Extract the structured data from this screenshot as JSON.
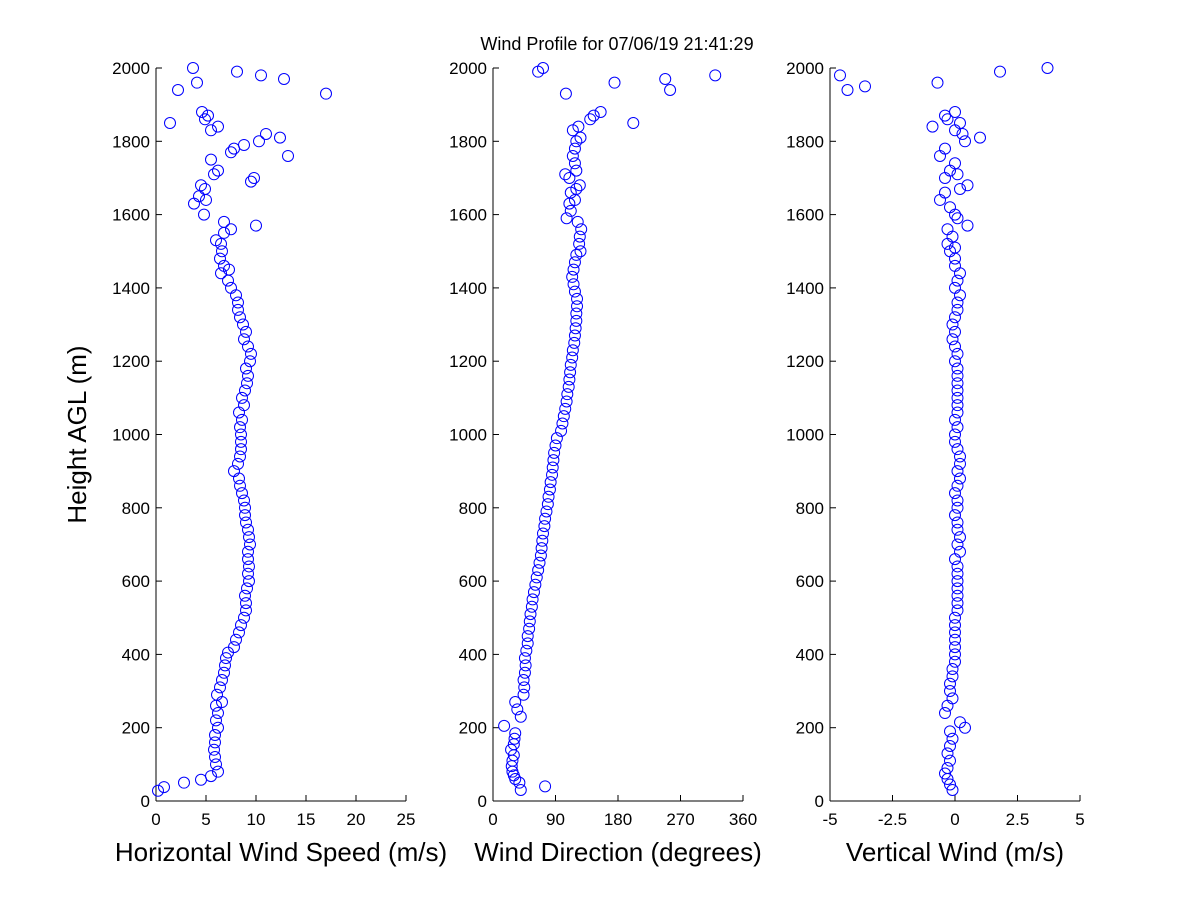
{
  "title": "Wind Profile for  07/06/19 21:41:29",
  "colors": {
    "marker": "#0000ff",
    "axes": "#000000",
    "background": "#ffffff"
  },
  "chart_data": [
    {
      "type": "scatter",
      "xlabel": "Horizontal Wind Speed (m/s)",
      "ylabel": "Height AGL (m)",
      "xlim": [
        0,
        25
      ],
      "ylim": [
        0,
        2000
      ],
      "xticks": [
        "0",
        "5",
        "10",
        "15",
        "20",
        "25"
      ],
      "yticks": [
        "0",
        "200",
        "400",
        "600",
        "800",
        "1000",
        "1200",
        "1400",
        "1600",
        "1800",
        "2000"
      ],
      "marker": "open-circle",
      "grid": false,
      "points": [
        [
          0.2,
          28
        ],
        [
          0.8,
          38
        ],
        [
          2.8,
          50
        ],
        [
          4.5,
          58
        ],
        [
          5.5,
          68
        ],
        [
          6.2,
          80
        ],
        [
          6.0,
          100
        ],
        [
          5.9,
          120
        ],
        [
          5.8,
          140
        ],
        [
          5.9,
          160
        ],
        [
          5.9,
          180
        ],
        [
          6.2,
          200
        ],
        [
          6.0,
          220
        ],
        [
          6.2,
          240
        ],
        [
          6.0,
          260
        ],
        [
          6.6,
          270
        ],
        [
          6.1,
          290
        ],
        [
          6.4,
          310
        ],
        [
          6.6,
          330
        ],
        [
          6.8,
          350
        ],
        [
          6.9,
          370
        ],
        [
          7.0,
          390
        ],
        [
          7.2,
          405
        ],
        [
          7.8,
          420
        ],
        [
          8.0,
          440
        ],
        [
          8.3,
          460
        ],
        [
          8.5,
          480
        ],
        [
          8.8,
          500
        ],
        [
          9.0,
          520
        ],
        [
          9.0,
          540
        ],
        [
          8.9,
          560
        ],
        [
          9.1,
          580
        ],
        [
          9.3,
          600
        ],
        [
          9.2,
          620
        ],
        [
          9.3,
          640
        ],
        [
          9.2,
          660
        ],
        [
          9.2,
          680
        ],
        [
          9.4,
          700
        ],
        [
          9.3,
          720
        ],
        [
          9.2,
          740
        ],
        [
          9.0,
          760
        ],
        [
          8.9,
          780
        ],
        [
          8.9,
          800
        ],
        [
          8.8,
          820
        ],
        [
          8.6,
          840
        ],
        [
          8.4,
          860
        ],
        [
          8.3,
          880
        ],
        [
          7.8,
          900
        ],
        [
          8.2,
          920
        ],
        [
          8.4,
          940
        ],
        [
          8.5,
          960
        ],
        [
          8.5,
          980
        ],
        [
          8.5,
          1000
        ],
        [
          8.4,
          1020
        ],
        [
          8.6,
          1040
        ],
        [
          8.3,
          1060
        ],
        [
          8.8,
          1080
        ],
        [
          8.6,
          1100
        ],
        [
          8.9,
          1120
        ],
        [
          9.1,
          1140
        ],
        [
          9.2,
          1160
        ],
        [
          9.0,
          1180
        ],
        [
          9.4,
          1200
        ],
        [
          9.5,
          1220
        ],
        [
          9.2,
          1240
        ],
        [
          8.8,
          1260
        ],
        [
          9.0,
          1280
        ],
        [
          8.7,
          1300
        ],
        [
          8.4,
          1320
        ],
        [
          8.2,
          1340
        ],
        [
          8.2,
          1360
        ],
        [
          8.0,
          1380
        ],
        [
          7.5,
          1400
        ],
        [
          7.2,
          1420
        ],
        [
          6.5,
          1440
        ],
        [
          7.3,
          1450
        ],
        [
          6.8,
          1460
        ],
        [
          6.4,
          1480
        ],
        [
          6.6,
          1500
        ],
        [
          6.5,
          1520
        ],
        [
          6.0,
          1530
        ],
        [
          6.8,
          1550
        ],
        [
          7.5,
          1560
        ],
        [
          6.8,
          1580
        ],
        [
          10.0,
          1570
        ],
        [
          4.8,
          1600
        ],
        [
          3.8,
          1630
        ],
        [
          5.0,
          1640
        ],
        [
          4.3,
          1650
        ],
        [
          4.9,
          1670
        ],
        [
          4.5,
          1680
        ],
        [
          9.5,
          1690
        ],
        [
          9.8,
          1700
        ],
        [
          5.8,
          1710
        ],
        [
          6.2,
          1720
        ],
        [
          5.5,
          1750
        ],
        [
          13.2,
          1760
        ],
        [
          7.5,
          1770
        ],
        [
          7.8,
          1780
        ],
        [
          8.8,
          1790
        ],
        [
          10.3,
          1800
        ],
        [
          12.4,
          1810
        ],
        [
          11.0,
          1820
        ],
        [
          5.5,
          1830
        ],
        [
          6.2,
          1840
        ],
        [
          1.4,
          1850
        ],
        [
          4.9,
          1860
        ],
        [
          5.2,
          1870
        ],
        [
          4.6,
          1880
        ],
        [
          2.2,
          1940
        ],
        [
          17.0,
          1930
        ],
        [
          4.1,
          1960
        ],
        [
          12.8,
          1970
        ],
        [
          10.5,
          1980
        ],
        [
          8.1,
          1990
        ],
        [
          3.7,
          2000
        ]
      ]
    },
    {
      "type": "scatter",
      "xlabel": "Wind Direction (degrees)",
      "ylabel": "",
      "xlim": [
        0,
        360
      ],
      "ylim": [
        0,
        2000
      ],
      "xticks": [
        "0",
        "90",
        "180",
        "270",
        "360"
      ],
      "yticks": [
        "0",
        "200",
        "400",
        "600",
        "800",
        "1000",
        "1200",
        "1400",
        "1600",
        "1800",
        "2000"
      ],
      "marker": "open-circle",
      "grid": false,
      "points": [
        [
          40,
          30
        ],
        [
          75,
          40
        ],
        [
          38,
          50
        ],
        [
          32,
          60
        ],
        [
          30,
          70
        ],
        [
          28,
          80
        ],
        [
          27,
          95
        ],
        [
          28,
          110
        ],
        [
          30,
          125
        ],
        [
          26,
          140
        ],
        [
          30,
          155
        ],
        [
          31,
          170
        ],
        [
          32,
          185
        ],
        [
          16,
          205
        ],
        [
          40,
          230
        ],
        [
          35,
          250
        ],
        [
          32,
          270
        ],
        [
          44,
          290
        ],
        [
          45,
          310
        ],
        [
          44,
          330
        ],
        [
          46,
          350
        ],
        [
          47,
          370
        ],
        [
          46,
          390
        ],
        [
          48,
          410
        ],
        [
          50,
          430
        ],
        [
          50,
          450
        ],
        [
          52,
          470
        ],
        [
          53,
          490
        ],
        [
          54,
          510
        ],
        [
          56,
          530
        ],
        [
          57,
          550
        ],
        [
          59,
          570
        ],
        [
          61,
          590
        ],
        [
          63,
          610
        ],
        [
          65,
          630
        ],
        [
          67,
          650
        ],
        [
          69,
          670
        ],
        [
          70,
          690
        ],
        [
          71,
          710
        ],
        [
          72,
          730
        ],
        [
          74,
          750
        ],
        [
          75,
          770
        ],
        [
          77,
          790
        ],
        [
          79,
          810
        ],
        [
          80,
          830
        ],
        [
          82,
          850
        ],
        [
          83,
          870
        ],
        [
          85,
          890
        ],
        [
          86,
          910
        ],
        [
          87,
          930
        ],
        [
          88,
          950
        ],
        [
          90,
          970
        ],
        [
          92,
          990
        ],
        [
          98,
          1010
        ],
        [
          100,
          1030
        ],
        [
          102,
          1050
        ],
        [
          104,
          1070
        ],
        [
          106,
          1090
        ],
        [
          107,
          1110
        ],
        [
          109,
          1130
        ],
        [
          110,
          1150
        ],
        [
          111,
          1170
        ],
        [
          112,
          1190
        ],
        [
          114,
          1210
        ],
        [
          115,
          1230
        ],
        [
          117,
          1250
        ],
        [
          118,
          1270
        ],
        [
          119,
          1290
        ],
        [
          120,
          1310
        ],
        [
          120,
          1330
        ],
        [
          121,
          1350
        ],
        [
          121,
          1370
        ],
        [
          118,
          1390
        ],
        [
          116,
          1410
        ],
        [
          114,
          1430
        ],
        [
          116,
          1450
        ],
        [
          118,
          1470
        ],
        [
          120,
          1490
        ],
        [
          126,
          1500
        ],
        [
          124,
          1520
        ],
        [
          125,
          1540
        ],
        [
          127,
          1560
        ],
        [
          122,
          1580
        ],
        [
          106,
          1590
        ],
        [
          112,
          1610
        ],
        [
          110,
          1630
        ],
        [
          118,
          1640
        ],
        [
          112,
          1660
        ],
        [
          120,
          1670
        ],
        [
          125,
          1680
        ],
        [
          110,
          1700
        ],
        [
          104,
          1710
        ],
        [
          120,
          1720
        ],
        [
          118,
          1740
        ],
        [
          115,
          1760
        ],
        [
          118,
          1780
        ],
        [
          120,
          1800
        ],
        [
          126,
          1810
        ],
        [
          115,
          1830
        ],
        [
          123,
          1840
        ],
        [
          202,
          1850
        ],
        [
          140,
          1860
        ],
        [
          155,
          1880
        ],
        [
          145,
          1870
        ],
        [
          105,
          1930
        ],
        [
          255,
          1940
        ],
        [
          175,
          1960
        ],
        [
          248,
          1970
        ],
        [
          320,
          1980
        ],
        [
          65,
          1990
        ],
        [
          72,
          2000
        ]
      ]
    },
    {
      "type": "scatter",
      "xlabel": "Vertical Wind (m/s)",
      "ylabel": "",
      "xlim": [
        -5,
        5
      ],
      "ylim": [
        0,
        2000
      ],
      "xticks": [
        "-5",
        "-2.5",
        "0",
        "2.5",
        "5"
      ],
      "yticks": [
        "0",
        "200",
        "400",
        "600",
        "800",
        "1000",
        "1200",
        "1400",
        "1600",
        "1800",
        "2000"
      ],
      "marker": "open-circle",
      "grid": false,
      "points": [
        [
          -0.1,
          30
        ],
        [
          -0.2,
          45
        ],
        [
          -0.3,
          60
        ],
        [
          -0.4,
          75
        ],
        [
          -0.3,
          90
        ],
        [
          -0.2,
          110
        ],
        [
          -0.3,
          130
        ],
        [
          -0.2,
          150
        ],
        [
          -0.1,
          170
        ],
        [
          -0.2,
          190
        ],
        [
          0.4,
          200
        ],
        [
          0.2,
          215
        ],
        [
          -0.4,
          240
        ],
        [
          -0.3,
          260
        ],
        [
          -0.1,
          280
        ],
        [
          -0.2,
          300
        ],
        [
          -0.2,
          320
        ],
        [
          -0.1,
          340
        ],
        [
          -0.1,
          360
        ],
        [
          0.0,
          380
        ],
        [
          0.0,
          400
        ],
        [
          0.0,
          420
        ],
        [
          0.0,
          440
        ],
        [
          0.0,
          460
        ],
        [
          0.0,
          480
        ],
        [
          0.0,
          500
        ],
        [
          0.1,
          520
        ],
        [
          0.1,
          540
        ],
        [
          0.1,
          560
        ],
        [
          0.1,
          580
        ],
        [
          0.1,
          600
        ],
        [
          0.1,
          620
        ],
        [
          0.1,
          640
        ],
        [
          0.0,
          660
        ],
        [
          0.2,
          680
        ],
        [
          0.1,
          700
        ],
        [
          0.2,
          720
        ],
        [
          0.1,
          740
        ],
        [
          0.1,
          760
        ],
        [
          0.0,
          780
        ],
        [
          0.1,
          800
        ],
        [
          0.1,
          820
        ],
        [
          0.0,
          840
        ],
        [
          0.1,
          860
        ],
        [
          0.2,
          880
        ],
        [
          0.1,
          900
        ],
        [
          0.2,
          920
        ],
        [
          0.2,
          940
        ],
        [
          0.1,
          960
        ],
        [
          0.0,
          980
        ],
        [
          0.0,
          1000
        ],
        [
          0.1,
          1020
        ],
        [
          0.0,
          1040
        ],
        [
          0.1,
          1060
        ],
        [
          0.1,
          1080
        ],
        [
          0.1,
          1100
        ],
        [
          0.1,
          1120
        ],
        [
          0.1,
          1140
        ],
        [
          0.1,
          1160
        ],
        [
          0.1,
          1180
        ],
        [
          0.0,
          1200
        ],
        [
          0.1,
          1220
        ],
        [
          0.0,
          1240
        ],
        [
          -0.1,
          1260
        ],
        [
          0.0,
          1280
        ],
        [
          -0.1,
          1300
        ],
        [
          0.0,
          1320
        ],
        [
          0.1,
          1340
        ],
        [
          0.1,
          1360
        ],
        [
          0.2,
          1380
        ],
        [
          0.0,
          1400
        ],
        [
          0.1,
          1420
        ],
        [
          0.2,
          1440
        ],
        [
          0.0,
          1460
        ],
        [
          0.0,
          1480
        ],
        [
          -0.2,
          1500
        ],
        [
          0.0,
          1510
        ],
        [
          -0.3,
          1520
        ],
        [
          -0.1,
          1540
        ],
        [
          -0.3,
          1560
        ],
        [
          0.5,
          1570
        ],
        [
          0.1,
          1590
        ],
        [
          0.0,
          1600
        ],
        [
          -0.2,
          1620
        ],
        [
          -0.6,
          1640
        ],
        [
          -0.4,
          1660
        ],
        [
          0.2,
          1670
        ],
        [
          0.5,
          1680
        ],
        [
          -0.4,
          1700
        ],
        [
          0.1,
          1710
        ],
        [
          -0.2,
          1720
        ],
        [
          0.0,
          1740
        ],
        [
          -0.6,
          1760
        ],
        [
          -0.4,
          1780
        ],
        [
          0.4,
          1800
        ],
        [
          1.0,
          1810
        ],
        [
          0.3,
          1820
        ],
        [
          0.0,
          1830
        ],
        [
          -0.9,
          1840
        ],
        [
          0.2,
          1850
        ],
        [
          -0.3,
          1860
        ],
        [
          -0.4,
          1870
        ],
        [
          0.0,
          1880
        ],
        [
          -4.3,
          1940
        ],
        [
          -3.6,
          1950
        ],
        [
          -0.7,
          1960
        ],
        [
          -4.6,
          1980
        ],
        [
          1.8,
          1990
        ],
        [
          3.7,
          2000
        ]
      ]
    }
  ]
}
